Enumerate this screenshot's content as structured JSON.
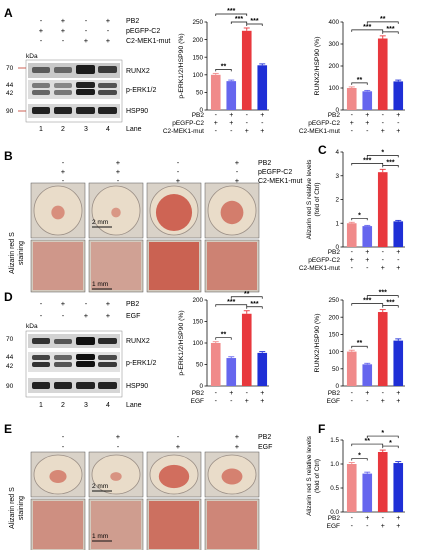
{
  "panels": {
    "A": {
      "letter": "A",
      "signs": {
        "PB2": [
          "-",
          "+",
          "-",
          "+"
        ],
        "pEGFP-C2": [
          "+",
          "+",
          "-",
          "-"
        ],
        "C2-MEK1-mut": [
          "-",
          "-",
          "+",
          "+"
        ]
      },
      "treatments": [
        "PB2",
        "pEGFP-C2",
        "C2-MEK1-mut"
      ],
      "kda_label": "kDa",
      "markers": [
        "70",
        "44",
        "42",
        "90"
      ],
      "bands": [
        "RUNX2",
        "p-ERK1/2",
        "HSP90"
      ],
      "lanes": [
        "1",
        "2",
        "3",
        "4"
      ],
      "lane_label": "Lane"
    },
    "B": {
      "letter": "B",
      "signs": {
        "PB2": [
          "-",
          "+",
          "-",
          "+"
        ],
        "pEGFP-C2": [
          "+",
          "+",
          "-",
          "-"
        ],
        "C2-MEK1-mut": [
          "-",
          "-",
          "+",
          "+"
        ]
      },
      "treatments": [
        "PB2",
        "pEGFP-C2",
        "C2-MEK1-mut"
      ],
      "side_label": [
        "Alizarin red S",
        "staining"
      ],
      "scale_top": "2 mm",
      "scale_bottom": "1 mm"
    },
    "C": {
      "letter": "C"
    },
    "D": {
      "letter": "D",
      "signs": {
        "PB2": [
          "-",
          "+",
          "-",
          "+"
        ],
        "EGF": [
          "-",
          "-",
          "+",
          "+"
        ]
      },
      "treatments": [
        "PB2",
        "EGF"
      ],
      "kda_label": "kDa",
      "markers": [
        "70",
        "44",
        "42",
        "90"
      ],
      "bands": [
        "RUNX2",
        "p-ERK1/2",
        "HSP90"
      ],
      "lanes": [
        "1",
        "2",
        "3",
        "4"
      ],
      "lane_label": "Lane"
    },
    "E": {
      "letter": "E",
      "signs": {
        "PB2": [
          "-",
          "+",
          "-",
          "+"
        ],
        "EGF": [
          "-",
          "-",
          "+",
          "+"
        ]
      },
      "treatments": [
        "PB2",
        "EGF"
      ],
      "side_label": [
        "Alizarin red S",
        "staining"
      ],
      "scale_top": "2 mm",
      "scale_bottom": "1 mm"
    },
    "F": {
      "letter": "F"
    }
  },
  "colors": {
    "bar1": "#f08a8a",
    "bar2": "#6666ee",
    "bar3": "#e8383d",
    "bar4": "#1f2fd6",
    "stain_red": "#c84a3a",
    "stain_pale": "#e9dcc9",
    "blot_dark": "#1a1a1a"
  },
  "chart_data": [
    {
      "id": "A1",
      "type": "bar",
      "ylabel": "p-ERK1/2/HSP90 (%)",
      "ylim": [
        0,
        250
      ],
      "yticks": [
        "0",
        "50",
        "100",
        "150",
        "200",
        "250"
      ],
      "values": [
        100,
        82,
        225,
        127
      ],
      "errors": [
        4,
        3,
        8,
        4
      ],
      "treatments": [
        "PB2",
        "pEGFP-C2",
        "C2-MEK1-mut"
      ],
      "signs": [
        [
          "-",
          "+",
          "-",
          "+"
        ],
        [
          "+",
          "+",
          "-",
          "-"
        ],
        [
          "-",
          "-",
          "+",
          "+"
        ]
      ],
      "sig": [
        {
          "a": 0,
          "b": 1,
          "text": "**",
          "level": 0
        },
        {
          "a": 2,
          "b": 3,
          "text": "***",
          "level": 0
        },
        {
          "a": 1,
          "b": 2,
          "text": "***",
          "level": 1
        },
        {
          "a": 0,
          "b": 2,
          "text": "***",
          "level": 2
        }
      ]
    },
    {
      "id": "A2",
      "type": "bar",
      "ylabel": "RUNX2/HSP90 (%)",
      "ylim": [
        0,
        400
      ],
      "yticks": [
        "0",
        "100",
        "200",
        "300",
        "400"
      ],
      "values": [
        100,
        85,
        325,
        130
      ],
      "errors": [
        5,
        4,
        12,
        6
      ],
      "treatments": [
        "PB2",
        "pEGFP-C2",
        "C2-MEK1-mut"
      ],
      "signs": [
        [
          "-",
          "+",
          "-",
          "+"
        ],
        [
          "+",
          "+",
          "-",
          "-"
        ],
        [
          "-",
          "-",
          "+",
          "+"
        ]
      ],
      "sig": [
        {
          "a": 0,
          "b": 1,
          "text": "**",
          "level": 0
        },
        {
          "a": 2,
          "b": 3,
          "text": "***",
          "level": 0
        },
        {
          "a": 0,
          "b": 2,
          "text": "***",
          "level": 1
        },
        {
          "a": 1,
          "b": 3,
          "text": "**",
          "level": 2
        }
      ]
    },
    {
      "id": "C",
      "type": "bar",
      "ylabel": "Alizarin red S relative levels (fold of Ctrl)",
      "ylim": [
        0,
        4
      ],
      "yticks": [
        "0",
        "1",
        "2",
        "3",
        "4"
      ],
      "values": [
        1.0,
        0.88,
        3.15,
        1.08
      ],
      "errors": [
        0.04,
        0.03,
        0.12,
        0.04
      ],
      "treatments": [
        "PB2",
        "pEGFP-C2",
        "C2-MEK1-mut"
      ],
      "signs": [
        [
          "-",
          "+",
          "-",
          "+"
        ],
        [
          "+",
          "+",
          "-",
          "-"
        ],
        [
          "-",
          "-",
          "+",
          "+"
        ]
      ],
      "sig": [
        {
          "a": 0,
          "b": 1,
          "text": "*",
          "level": 0
        },
        {
          "a": 2,
          "b": 3,
          "text": "***",
          "level": 0
        },
        {
          "a": 0,
          "b": 2,
          "text": "***",
          "level": 1
        },
        {
          "a": 1,
          "b": 3,
          "text": "*",
          "level": 2
        }
      ]
    },
    {
      "id": "D1",
      "type": "bar",
      "ylabel": "p-ERK1/2/HSP90 (%)",
      "ylim": [
        0,
        200
      ],
      "yticks": [
        "0",
        "50",
        "100",
        "150",
        "200"
      ],
      "values": [
        100,
        65,
        168,
        77
      ],
      "errors": [
        3,
        3,
        7,
        3
      ],
      "treatments": [
        "PB2",
        "EGF"
      ],
      "signs": [
        [
          "-",
          "+",
          "-",
          "+"
        ],
        [
          "-",
          "-",
          "+",
          "+"
        ]
      ],
      "sig": [
        {
          "a": 0,
          "b": 1,
          "text": "**",
          "level": 0
        },
        {
          "a": 2,
          "b": 3,
          "text": "***",
          "level": 0
        },
        {
          "a": 0,
          "b": 2,
          "text": "***",
          "level": 1
        },
        {
          "a": 1,
          "b": 3,
          "text": "**",
          "level": 2
        }
      ]
    },
    {
      "id": "D2",
      "type": "bar",
      "ylabel": "RUNX2/HSP90 (%)",
      "ylim": [
        0,
        250
      ],
      "yticks": [
        "0",
        "50",
        "100",
        "150",
        "200",
        "250"
      ],
      "values": [
        100,
        63,
        215,
        132
      ],
      "errors": [
        4,
        3,
        7,
        5
      ],
      "treatments": [
        "PB2",
        "EGF"
      ],
      "signs": [
        [
          "-",
          "+",
          "-",
          "+"
        ],
        [
          "-",
          "-",
          "+",
          "+"
        ]
      ],
      "sig": [
        {
          "a": 0,
          "b": 1,
          "text": "**",
          "level": 0
        },
        {
          "a": 2,
          "b": 3,
          "text": "***",
          "level": 0
        },
        {
          "a": 0,
          "b": 2,
          "text": "***",
          "level": 1
        },
        {
          "a": 1,
          "b": 3,
          "text": "***",
          "level": 2
        }
      ]
    },
    {
      "id": "F",
      "type": "bar",
      "ylabel": "Alizarin red S relative levels (fold of Ctrl)",
      "ylim": [
        0,
        1.5
      ],
      "yticks": [
        "0.0",
        "0.5",
        "1.0",
        "1.5"
      ],
      "values": [
        1.0,
        0.8,
        1.25,
        1.02
      ],
      "errors": [
        0.03,
        0.03,
        0.04,
        0.03
      ],
      "treatments": [
        "PB2",
        "EGF"
      ],
      "signs": [
        [
          "-",
          "+",
          "-",
          "+"
        ],
        [
          "-",
          "-",
          "+",
          "+"
        ]
      ],
      "sig": [
        {
          "a": 0,
          "b": 1,
          "text": "*",
          "level": 0
        },
        {
          "a": 2,
          "b": 3,
          "text": "*",
          "level": 0
        },
        {
          "a": 0,
          "b": 2,
          "text": "**",
          "level": 1
        },
        {
          "a": 1,
          "b": 3,
          "text": "*",
          "level": 2
        }
      ]
    }
  ]
}
